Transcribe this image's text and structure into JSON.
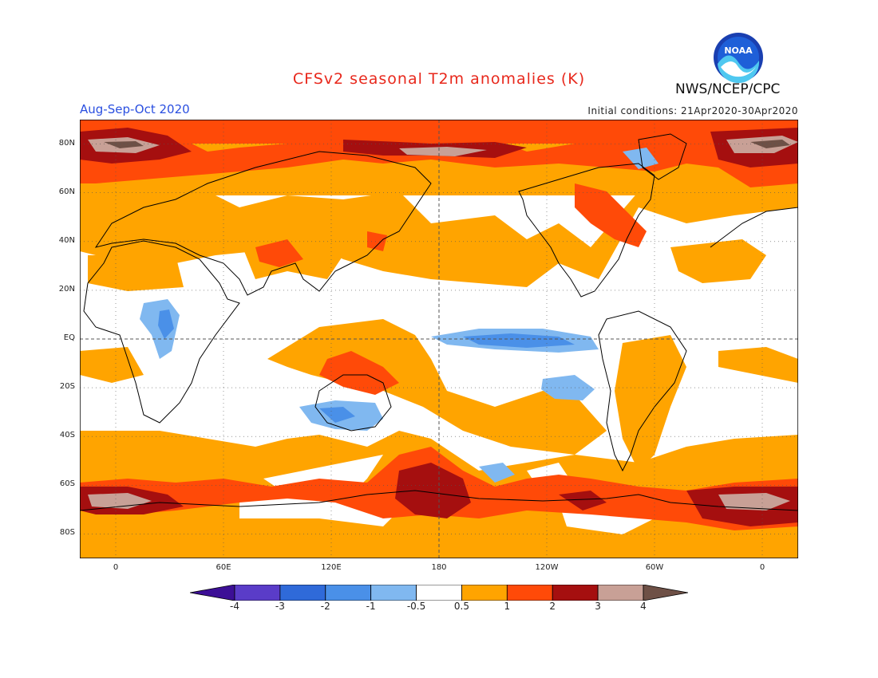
{
  "title": "CFSv2 seasonal T2m anomalies (K)",
  "period": "Aug-Sep-Oct 2020",
  "initial_conditions": "Initial conditions: 21Apr2020-30Apr2020",
  "agency": "NWS/NCEP/CPC",
  "logo": {
    "name": "noaa-logo",
    "text": "NOAA"
  },
  "lat_labels": [
    "80N",
    "60N",
    "40N",
    "20N",
    "EQ",
    "20S",
    "40S",
    "60S",
    "80S"
  ],
  "lat_values": [
    80,
    60,
    40,
    20,
    0,
    -20,
    -40,
    -60,
    -80
  ],
  "lon_labels": [
    "0",
    "60E",
    "120E",
    "180",
    "120W",
    "60W",
    "0"
  ],
  "lon_values": [
    0,
    60,
    120,
    180,
    240,
    300,
    360
  ],
  "map_extent": {
    "lon_min": -20,
    "lon_max": 380,
    "lat_min": -90,
    "lat_max": 90
  },
  "colorbar": {
    "labels": [
      "-4",
      "-3",
      "-2",
      "-1",
      "-0.5",
      "0.5",
      "1",
      "2",
      "3",
      "4"
    ],
    "colors": [
      "#3c0f96",
      "#5a3cc8",
      "#2f6ad9",
      "#4a90e8",
      "#80b8f0",
      "#ffffff",
      "#ffa400",
      "#ff4a08",
      "#a50f0f",
      "#c8a096",
      "#6e5046"
    ]
  },
  "colors": {
    "warm1": "#ffa400",
    "warm2": "#ff4a08",
    "warm3": "#a50f0f",
    "warm4": "#c8a096",
    "warm5": "#6e5046",
    "cool1": "#80b8f0",
    "cool2": "#4a90e8",
    "cool3": "#2f6ad9"
  }
}
